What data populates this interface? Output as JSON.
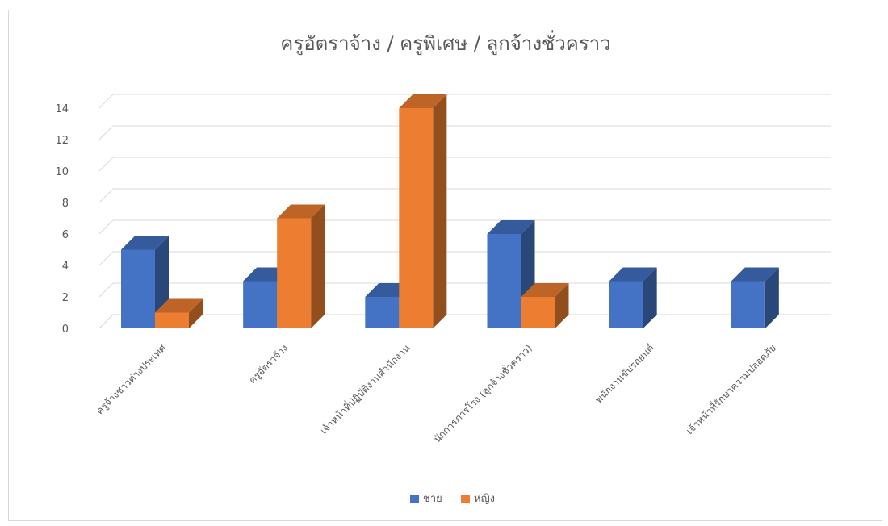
{
  "chart_data": {
    "type": "bar",
    "style": "3d-clustered-column",
    "title": "ครูอัตราจ้าง / ครูพิเศษ / ลูกจ้างชั่วคราว",
    "xlabel": "",
    "ylabel": "",
    "ylim": [
      0,
      14
    ],
    "yticks": [
      0,
      2,
      4,
      6,
      8,
      10,
      12,
      14
    ],
    "grid": true,
    "legend_position": "bottom",
    "categories": [
      "ครูจ้างชาวต่างประเทศ",
      "ครูอัตราจ้าง",
      "เจ้าหน้าที่ปฏิบัติงานสำนักงาน",
      "นักการภารโรง (ลูกจ้างชั่วคราว)",
      "พนักงานขับรถยนต์",
      "เจ้าหน้าที่รักษาความปลอดภัย"
    ],
    "series": [
      {
        "name": "ชาย",
        "color": "#4472C4",
        "values": [
          5,
          3,
          2,
          6,
          3,
          3
        ]
      },
      {
        "name": "หญิง",
        "color": "#ED7D31",
        "values": [
          1,
          7,
          14,
          2,
          null,
          null
        ]
      }
    ]
  }
}
